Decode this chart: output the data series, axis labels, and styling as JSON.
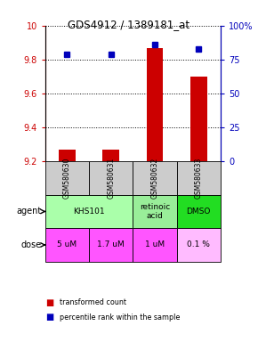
{
  "title": "GDS4912 / 1389181_at",
  "samples": [
    "GSM580630",
    "GSM580631",
    "GSM580632",
    "GSM580633"
  ],
  "transformed_counts": [
    9.27,
    9.27,
    9.87,
    9.7
  ],
  "percentile_ranks": [
    79,
    79,
    86,
    83
  ],
  "ylim_left": [
    9.2,
    10.0
  ],
  "ylim_right": [
    0,
    100
  ],
  "yticks_left": [
    9.2,
    9.4,
    9.6,
    9.8,
    10.0
  ],
  "ytick_labels_left": [
    "9.2",
    "9.4",
    "9.6",
    "9.8",
    "10"
  ],
  "yticks_right": [
    0,
    25,
    50,
    75,
    100
  ],
  "ytick_labels_right": [
    "0",
    "25",
    "50",
    "75",
    "100%"
  ],
  "bar_color": "#cc0000",
  "dot_color": "#0000bb",
  "agent_configs": [
    [
      0,
      2,
      "KHS101",
      "#aaffaa"
    ],
    [
      2,
      3,
      "retinoic\nacid",
      "#99ee99"
    ],
    [
      3,
      4,
      "DMSO",
      "#22dd22"
    ]
  ],
  "dose_labels": [
    "5 uM",
    "1.7 uM",
    "1 uM",
    "0.1 %"
  ],
  "dose_colors": [
    "#ff55ff",
    "#ff55ff",
    "#ff55ff",
    "#ffbbff"
  ],
  "sample_bg_color": "#cccccc",
  "left_axis_color": "#cc0000",
  "right_axis_color": "#0000bb"
}
